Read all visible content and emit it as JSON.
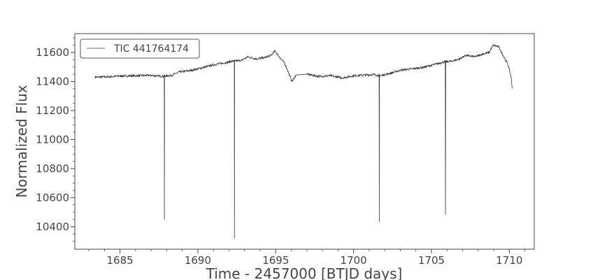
{
  "chart_data": {
    "type": "line",
    "title": "",
    "xlabel": "Time - 2457000 [BTJD days]",
    "ylabel": "Normalized Flux",
    "xlim": [
      1682.1,
      1711.6
    ],
    "ylim": [
      10245,
      11730
    ],
    "x_ticks": [
      1685,
      1690,
      1695,
      1700,
      1705,
      1710
    ],
    "y_ticks": [
      10400,
      10600,
      10800,
      11000,
      11200,
      11400,
      11600
    ],
    "x_tick_labels": [
      "1685",
      "1690",
      "1695",
      "1700",
      "1705",
      "1710"
    ],
    "y_tick_labels": [
      "10400",
      "10600",
      "10800",
      "11000",
      "11200",
      "11400",
      "11600"
    ],
    "grid": false,
    "legend_position": "top-left",
    "series": [
      {
        "name": "TIC 441764174",
        "color": "#333333",
        "baseline": [
          [
            1683.4,
            11430
          ],
          [
            1684.2,
            11432
          ],
          [
            1685.0,
            11438
          ],
          [
            1686.0,
            11440
          ],
          [
            1687.0,
            11442
          ],
          [
            1687.7,
            11436
          ],
          [
            1688.3,
            11442
          ],
          [
            1688.8,
            11465
          ],
          [
            1689.5,
            11475
          ],
          [
            1690.3,
            11495
          ],
          [
            1691.0,
            11515
          ],
          [
            1691.8,
            11530
          ],
          [
            1692.2,
            11540
          ],
          [
            1692.8,
            11545
          ],
          [
            1693.2,
            11570
          ],
          [
            1693.8,
            11555
          ],
          [
            1694.3,
            11565
          ],
          [
            1694.7,
            11580
          ],
          [
            1694.95,
            11610
          ],
          [
            1695.2,
            11575
          ],
          [
            1695.6,
            11520
          ],
          [
            1695.9,
            11440
          ],
          [
            1696.05,
            11400
          ],
          [
            1696.3,
            11445
          ],
          [
            1697.0,
            11450
          ],
          [
            1697.8,
            11435
          ],
          [
            1698.5,
            11440
          ],
          [
            1699.3,
            11425
          ],
          [
            1700.0,
            11440
          ],
          [
            1700.8,
            11445
          ],
          [
            1701.3,
            11448
          ],
          [
            1701.7,
            11440
          ],
          [
            1702.3,
            11455
          ],
          [
            1703.0,
            11478
          ],
          [
            1703.8,
            11488
          ],
          [
            1704.5,
            11498
          ],
          [
            1705.3,
            11520
          ],
          [
            1705.8,
            11535
          ],
          [
            1706.3,
            11540
          ],
          [
            1706.8,
            11555
          ],
          [
            1707.2,
            11580
          ],
          [
            1707.8,
            11570
          ],
          [
            1708.3,
            11590
          ],
          [
            1708.7,
            11600
          ],
          [
            1708.95,
            11650
          ],
          [
            1709.3,
            11640
          ],
          [
            1709.6,
            11580
          ],
          [
            1709.9,
            11520
          ],
          [
            1710.1,
            11440
          ],
          [
            1710.18,
            11360
          ]
        ],
        "gaps": [
          [
            1696.3,
            1697.0
          ]
        ],
        "transits": [
          {
            "center": 1687.85,
            "min": 10450
          },
          {
            "center": 1692.35,
            "min": 10320
          },
          {
            "center": 1701.65,
            "min": 10435
          },
          {
            "center": 1705.9,
            "min": 10485
          }
        ],
        "noise_amplitude": 8
      }
    ]
  }
}
